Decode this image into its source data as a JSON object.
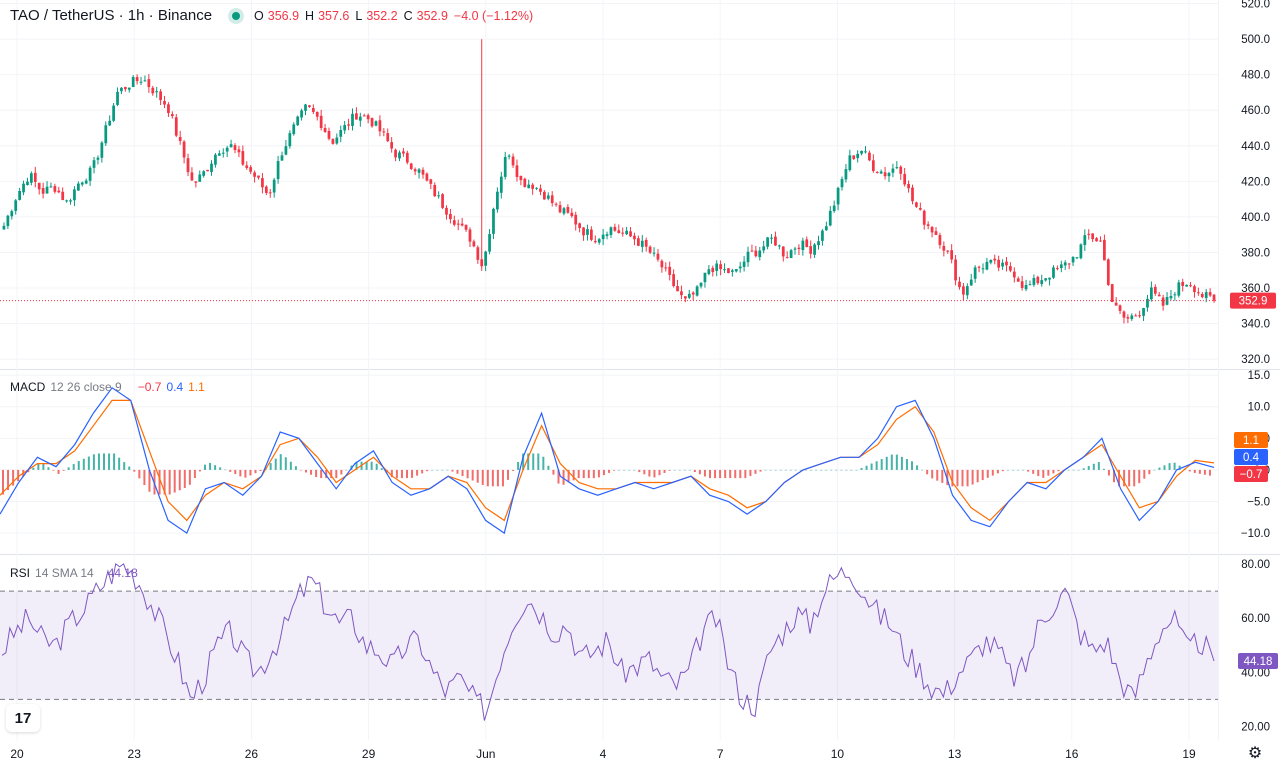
{
  "header": {
    "symbol_line": "TAO / TetherUS · 1h · Binance",
    "o_label": "O",
    "o_value": "356.9",
    "h_label": "H",
    "h_value": "357.6",
    "l_label": "L",
    "l_value": "352.2",
    "c_label": "C",
    "c_value": "352.9",
    "change": "−4.0 (−1.12%)"
  },
  "macd_label": {
    "name": "MACD",
    "params": "12 26 close 9",
    "hist": "−0.7",
    "macd": "0.4",
    "signal": "1.1"
  },
  "rsi_label": {
    "name": "RSI",
    "params": "14 SMA 14",
    "value": "44.18"
  },
  "colors": {
    "up": "#089981",
    "down": "#f23645",
    "macd": "#2962ff",
    "signal": "#ff6d00",
    "rsi": "#7e57c2",
    "rsi_band": "#7e57c2"
  },
  "icons": {
    "logo": "tradingview-logo-icon",
    "settings": "gear-icon"
  },
  "logo_text": "17",
  "settings_glyph": "⚙",
  "chart_data": [
    {
      "type": "candlestick",
      "title": "TAO / TetherUS · 1h · Binance",
      "x_tick_labels": [
        "20",
        "23",
        "26",
        "29",
        "Jun",
        "4",
        "7",
        "10",
        "13",
        "16",
        "19"
      ],
      "y_ticks": [
        320,
        340,
        360,
        380,
        400,
        420,
        440,
        460,
        480,
        500,
        520
      ],
      "ylim": [
        315,
        522
      ],
      "last_price": 352.9,
      "last_price_label": "352.9",
      "anchors": [
        395,
        412,
        424,
        414,
        417,
        408,
        420,
        426,
        447,
        470,
        475,
        478,
        470,
        462,
        440,
        418,
        426,
        438,
        440,
        430,
        422,
        412,
        436,
        450,
        462,
        455,
        442,
        450,
        458,
        455,
        447,
        436,
        432,
        425,
        415,
        405,
        396,
        388,
        372,
        412,
        438,
        420,
        418,
        412,
        404,
        400,
        392,
        388,
        394,
        391,
        388,
        382,
        374,
        363,
        352,
        358,
        372,
        370,
        368,
        378,
        382,
        388,
        378,
        385,
        382,
        392,
        410,
        432,
        438,
        428,
        424,
        430,
        410,
        398,
        390,
        378,
        356,
        370,
        374,
        372,
        370,
        360,
        364,
        368,
        372,
        378,
        390,
        386,
        350,
        342,
        346,
        358,
        350,
        360,
        364,
        356,
        352.9
      ]
    },
    {
      "type": "line",
      "title": "MACD",
      "params": "12 26 close 9",
      "y_ticks": [
        15,
        10,
        5,
        0,
        -5,
        -10
      ],
      "ylim": [
        -13,
        15.5
      ],
      "series": [
        {
          "name": "MACD",
          "values": [
            -7,
            -2,
            2,
            0.5,
            4,
            9,
            13,
            11,
            0,
            -8,
            -10,
            -3,
            -2,
            -4,
            -1,
            6,
            5,
            1,
            -3,
            1,
            3,
            -2,
            -4,
            -3,
            -1,
            -3,
            -8,
            -10,
            2,
            9,
            -1,
            -3,
            -4,
            -3,
            -2,
            -3,
            -2,
            -1,
            -4,
            -5,
            -7,
            -5,
            -2,
            0,
            1,
            2,
            2,
            5,
            10,
            11,
            5,
            -4,
            -8,
            -9,
            -5,
            -2,
            -3,
            0,
            2,
            5,
            -3,
            -8,
            -5,
            0,
            1.2,
            0.4
          ]
        },
        {
          "name": "Signal",
          "values": [
            -4,
            -1,
            1,
            1,
            3,
            7,
            11,
            11,
            3,
            -5,
            -8,
            -4,
            -2,
            -3,
            -1,
            4,
            5,
            2,
            -2,
            0,
            2,
            -1,
            -3,
            -3,
            -1,
            -2,
            -6,
            -8,
            0,
            7,
            1,
            -2,
            -3,
            -3,
            -2,
            -2,
            -2,
            -1,
            -3,
            -4,
            -6,
            -5,
            -2,
            0,
            1,
            2,
            2,
            4,
            8,
            10,
            6,
            -2,
            -6,
            -8,
            -5,
            -2,
            -2,
            0,
            2,
            4,
            -1,
            -6,
            -5,
            -1,
            1.5,
            1.1
          ]
        }
      ],
      "histogram_last": -0.7
    },
    {
      "type": "line",
      "title": "RSI",
      "params": "14 SMA 14",
      "y_ticks": [
        80,
        60,
        40,
        20
      ],
      "ylim": [
        15,
        83
      ],
      "bands": [
        30,
        70
      ],
      "series": [
        {
          "name": "RSI",
          "values": [
            48,
            55,
            60,
            52,
            50,
            58,
            63,
            70,
            76,
            80,
            75,
            66,
            56,
            45,
            30,
            38,
            50,
            55,
            45,
            40,
            48,
            56,
            68,
            74,
            65,
            58,
            60,
            50,
            48,
            42,
            50,
            52,
            40,
            33,
            38,
            30,
            26,
            45,
            60,
            68,
            62,
            55,
            58,
            45,
            48,
            52,
            40,
            42,
            45,
            38,
            35,
            40,
            55,
            60,
            42,
            30,
            28,
            48,
            55,
            62,
            58,
            70,
            76,
            78,
            70,
            62,
            58,
            48,
            42,
            35,
            32,
            40,
            45,
            52,
            48,
            38,
            42,
            58,
            65,
            70,
            55,
            48,
            52,
            38,
            30,
            44,
            56,
            60,
            48,
            52,
            44.18
          ]
        }
      ],
      "value_label": "44.18"
    }
  ]
}
